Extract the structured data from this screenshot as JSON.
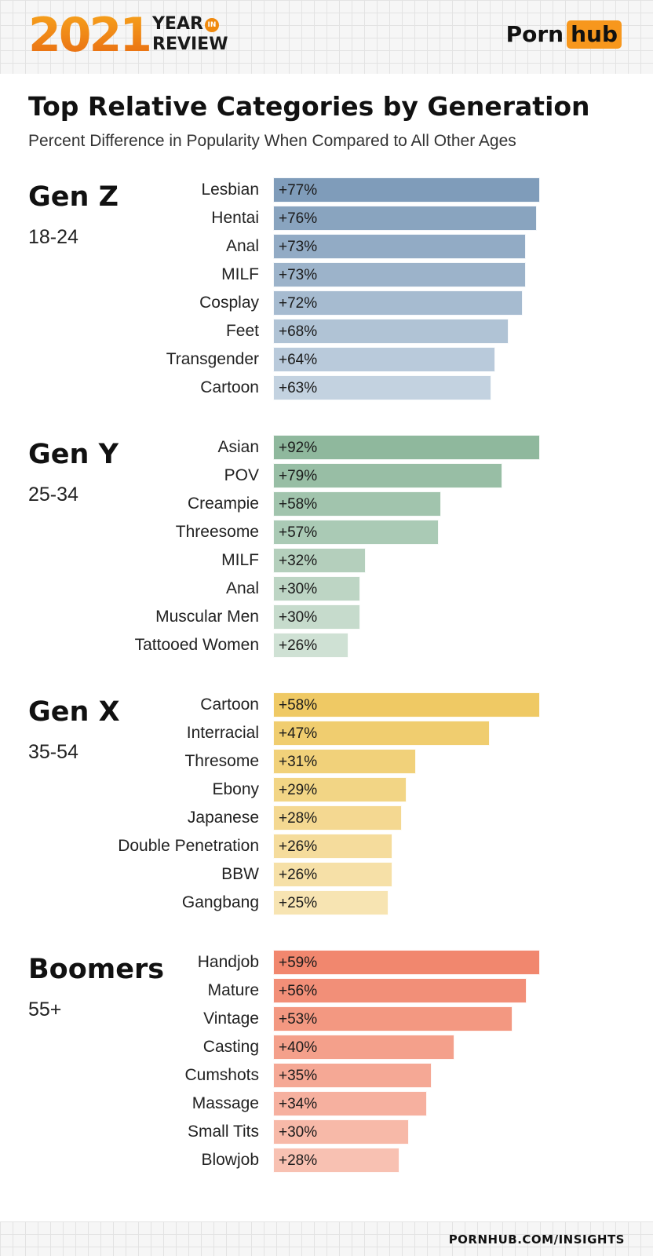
{
  "header": {
    "year": "2021",
    "year_word": "YEAR",
    "in_word": "IN",
    "review_word": "REVIEW",
    "brand_left": "Porn",
    "brand_right": "hub"
  },
  "footer": {
    "url": "PORNHUB.COM/INSIGHTS"
  },
  "colors": {
    "gen_z": [
      "#7f9cba",
      "#c3d2e0"
    ],
    "gen_y": [
      "#8fb89d",
      "#cfe1d4"
    ],
    "gen_x": [
      "#efc964",
      "#f7e4b2"
    ],
    "boomers": [
      "#f1876e",
      "#f8c1b2"
    ]
  },
  "chart_data": {
    "type": "bar",
    "orientation": "horizontal",
    "title": "Top Relative Categories by Generation",
    "subtitle": "Percent Difference in Popularity When Compared to All Other Ages",
    "groups": [
      {
        "key": "gen_z",
        "name": "Gen Z",
        "age": "18-24",
        "categories": [
          "Lesbian",
          "Hentai",
          "Anal",
          "MILF",
          "Cosplay",
          "Feet",
          "Transgender",
          "Cartoon"
        ],
        "values": [
          77,
          76,
          73,
          73,
          72,
          68,
          64,
          63
        ],
        "labels": [
          "+77%",
          "+76%",
          "+73%",
          "+73%",
          "+72%",
          "+68%",
          "+64%",
          "+63%"
        ]
      },
      {
        "key": "gen_y",
        "name": "Gen Y",
        "age": "25-34",
        "categories": [
          "Asian",
          "POV",
          "Creampie",
          "Threesome",
          "MILF",
          "Anal",
          "Muscular Men",
          "Tattooed Women"
        ],
        "values": [
          92,
          79,
          58,
          57,
          32,
          30,
          30,
          26
        ],
        "labels": [
          "+92%",
          "+79%",
          "+58%",
          "+57%",
          "+32%",
          "+30%",
          "+30%",
          "+26%"
        ]
      },
      {
        "key": "gen_x",
        "name": "Gen X",
        "age": "35-54",
        "categories": [
          "Cartoon",
          "Interracial",
          "Thresome",
          "Ebony",
          "Japanese",
          "Double Penetration",
          "BBW",
          "Gangbang"
        ],
        "values": [
          58,
          47,
          31,
          29,
          28,
          26,
          26,
          25
        ],
        "labels": [
          "+58%",
          "+47%",
          "+31%",
          "+29%",
          "+28%",
          "+26%",
          "+26%",
          "+25%"
        ]
      },
      {
        "key": "boomers",
        "name": "Boomers",
        "age": "55+",
        "categories": [
          "Handjob",
          "Mature",
          "Vintage",
          "Casting",
          "Cumshots",
          "Massage",
          "Small Tits",
          "Blowjob"
        ],
        "values": [
          59,
          56,
          53,
          40,
          35,
          34,
          30,
          28
        ],
        "labels": [
          "+59%",
          "+56%",
          "+53%",
          "+40%",
          "+35%",
          "+34%",
          "+30%",
          "+28%"
        ]
      }
    ]
  }
}
